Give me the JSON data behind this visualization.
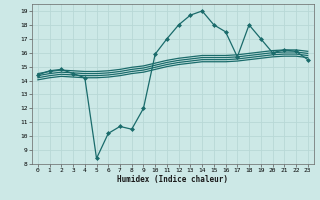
{
  "xlabel": "Humidex (Indice chaleur)",
  "xlim": [
    -0.5,
    23.5
  ],
  "ylim": [
    8,
    19.5
  ],
  "xticks": [
    0,
    1,
    2,
    3,
    4,
    5,
    6,
    7,
    8,
    9,
    10,
    11,
    12,
    13,
    14,
    15,
    16,
    17,
    18,
    19,
    20,
    21,
    22,
    23
  ],
  "yticks": [
    8,
    9,
    10,
    11,
    12,
    13,
    14,
    15,
    16,
    17,
    18,
    19
  ],
  "bg_color": "#cce8e6",
  "line_color": "#1a6b6b",
  "grid_color": "#b8d8d6",
  "lines": [
    {
      "x": [
        0,
        1,
        2,
        3,
        4,
        5,
        6,
        7,
        8,
        9,
        10,
        11,
        12,
        13,
        14,
        15,
        16,
        17,
        18,
        19,
        20,
        21,
        22,
        23
      ],
      "y": [
        14.4,
        14.7,
        14.8,
        14.5,
        14.2,
        8.4,
        10.2,
        10.7,
        10.5,
        12.0,
        15.9,
        17.0,
        18.0,
        18.7,
        19.0,
        18.0,
        17.5,
        15.7,
        18.0,
        17.0,
        16.0,
        16.2,
        16.1,
        15.5
      ],
      "marker": "D",
      "markersize": 2,
      "linewidth": 0.9
    },
    {
      "x": [
        0,
        1,
        2,
        3,
        4,
        5,
        6,
        7,
        8,
        9,
        10,
        11,
        12,
        13,
        14,
        15,
        16,
        17,
        18,
        19,
        20,
        21,
        22,
        23
      ],
      "y": [
        14.5,
        14.65,
        14.75,
        14.7,
        14.65,
        14.65,
        14.7,
        14.8,
        14.95,
        15.05,
        15.25,
        15.45,
        15.6,
        15.7,
        15.8,
        15.8,
        15.8,
        15.85,
        15.95,
        16.05,
        16.15,
        16.2,
        16.2,
        16.1
      ],
      "marker": "none",
      "markersize": 0,
      "linewidth": 0.9
    },
    {
      "x": [
        0,
        1,
        2,
        3,
        4,
        5,
        6,
        7,
        8,
        9,
        10,
        11,
        12,
        13,
        14,
        15,
        16,
        17,
        18,
        19,
        20,
        21,
        22,
        23
      ],
      "y": [
        14.35,
        14.5,
        14.6,
        14.55,
        14.5,
        14.5,
        14.55,
        14.65,
        14.8,
        14.9,
        15.1,
        15.3,
        15.45,
        15.55,
        15.65,
        15.65,
        15.65,
        15.7,
        15.8,
        15.9,
        16.0,
        16.05,
        16.05,
        15.95
      ],
      "marker": "none",
      "markersize": 0,
      "linewidth": 0.9
    },
    {
      "x": [
        0,
        1,
        2,
        3,
        4,
        5,
        6,
        7,
        8,
        9,
        10,
        11,
        12,
        13,
        14,
        15,
        16,
        17,
        18,
        19,
        20,
        21,
        22,
        23
      ],
      "y": [
        14.2,
        14.35,
        14.45,
        14.4,
        14.35,
        14.35,
        14.4,
        14.5,
        14.65,
        14.75,
        14.95,
        15.15,
        15.3,
        15.4,
        15.5,
        15.5,
        15.5,
        15.55,
        15.65,
        15.75,
        15.85,
        15.9,
        15.9,
        15.8
      ],
      "marker": "none",
      "markersize": 0,
      "linewidth": 0.9
    },
    {
      "x": [
        0,
        1,
        2,
        3,
        4,
        5,
        6,
        7,
        8,
        9,
        10,
        11,
        12,
        13,
        14,
        15,
        16,
        17,
        18,
        19,
        20,
        21,
        22,
        23
      ],
      "y": [
        14.05,
        14.2,
        14.3,
        14.25,
        14.2,
        14.2,
        14.25,
        14.35,
        14.5,
        14.6,
        14.8,
        15.0,
        15.15,
        15.25,
        15.35,
        15.35,
        15.35,
        15.4,
        15.5,
        15.6,
        15.7,
        15.75,
        15.75,
        15.65
      ],
      "marker": "none",
      "markersize": 0,
      "linewidth": 0.9
    }
  ]
}
